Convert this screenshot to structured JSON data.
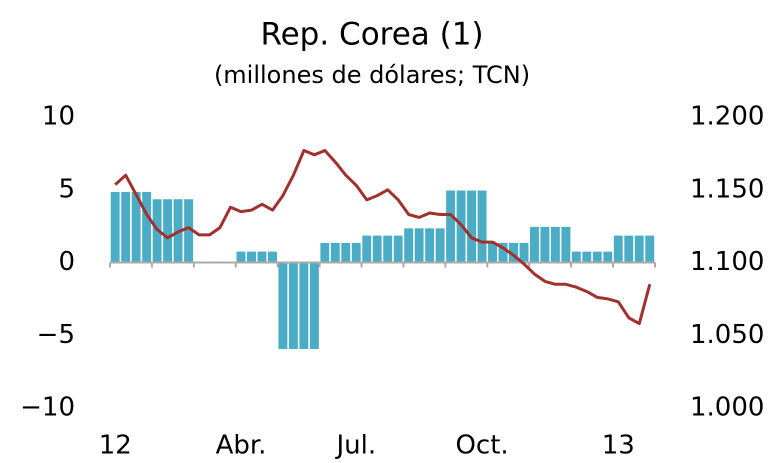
{
  "chart_data": {
    "type": "bar-line",
    "title": "Rep. Corea (1)",
    "subtitle": "(millones de dólares; TCN)",
    "categories": [
      "12",
      null,
      null,
      null,
      null,
      null,
      null,
      null,
      null,
      null,
      null,
      null,
      "Abr.",
      null,
      null,
      null,
      null,
      null,
      null,
      null,
      null,
      null,
      null,
      "Jul.",
      null,
      null,
      null,
      null,
      null,
      null,
      null,
      null,
      null,
      null,
      null,
      "Oct.",
      null,
      null,
      null,
      null,
      null,
      null,
      null,
      null,
      null,
      null,
      null,
      null,
      "13",
      null,
      null,
      null
    ],
    "series": [
      {
        "type": "bar",
        "color": "#4bacc6",
        "values": [
          4.9,
          4.9,
          4.9,
          4.9,
          4.4,
          4.4,
          4.4,
          4.4,
          0.1,
          0.1,
          0.1,
          0.1,
          0.8,
          0.8,
          0.8,
          0.8,
          -6.0,
          -6.0,
          -6.0,
          -6.0,
          1.4,
          1.4,
          1.4,
          1.4,
          1.9,
          1.9,
          1.9,
          1.9,
          2.4,
          2.4,
          2.4,
          2.4,
          5.0,
          5.0,
          5.0,
          5.0,
          1.4,
          1.4,
          1.4,
          1.4,
          2.5,
          2.5,
          2.5,
          2.5,
          0.8,
          0.8,
          0.8,
          0.8,
          1.9,
          1.9,
          1.9,
          1.9
        ]
      },
      {
        "type": "line",
        "color": "#a0312e",
        "axis": "y2",
        "values": [
          1.1535,
          1.16,
          1.1466,
          1.133,
          1.1226,
          1.117,
          1.121,
          1.124,
          1.119,
          1.119,
          1.124,
          1.138,
          1.135,
          1.136,
          1.14,
          1.136,
          1.146,
          1.16,
          1.177,
          1.174,
          1.177,
          1.169,
          1.16,
          1.153,
          1.143,
          1.146,
          1.15,
          1.143,
          1.133,
          1.131,
          1.134,
          1.133,
          1.133,
          1.126,
          1.117,
          1.114,
          1.114,
          1.11,
          1.105,
          1.099,
          1.092,
          1.087,
          1.085,
          1.085,
          1.083,
          1.08,
          1.076,
          1.075,
          1.073,
          1.062,
          1.058,
          1.085
        ]
      }
    ],
    "ylim": [
      -10,
      10
    ],
    "yticks": [
      {
        "value": -10,
        "label": "−10"
      },
      {
        "value": -5,
        "label": "−5"
      },
      0,
      5,
      10
    ],
    "y2lim": [
      1.0,
      1.2
    ],
    "y2ticks": [
      {
        "value": 1.0,
        "label": "1.000"
      },
      {
        "value": 1.05,
        "label": "1.050"
      },
      {
        "value": 1.1,
        "label": "1.100"
      },
      {
        "value": 1.15,
        "label": "1.150"
      },
      {
        "value": 1.2,
        "label": "1.200"
      }
    ]
  }
}
